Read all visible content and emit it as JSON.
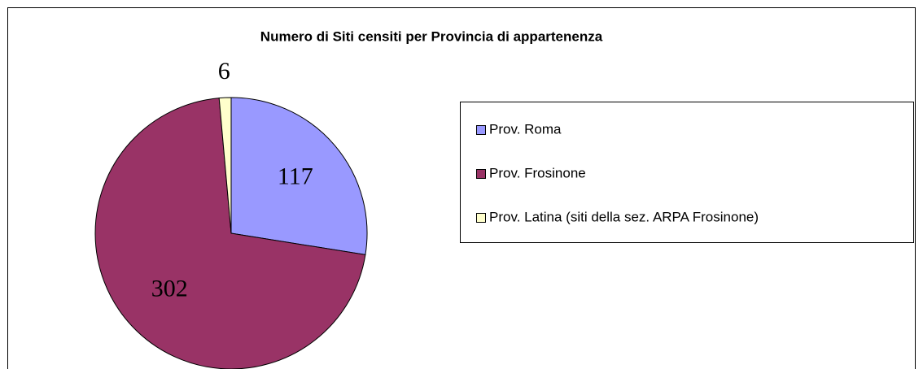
{
  "chart_data": {
    "type": "pie",
    "title": "Numero di Siti censiti per Provincia di appartenenza",
    "categories": [
      "Prov. Roma",
      "Prov. Frosinone",
      "Prov. Latina (siti della sez. ARPA Frosinone)"
    ],
    "values": [
      117,
      302,
      6
    ],
    "colors": [
      "#9999ff",
      "#993366",
      "#ffffcc"
    ]
  }
}
